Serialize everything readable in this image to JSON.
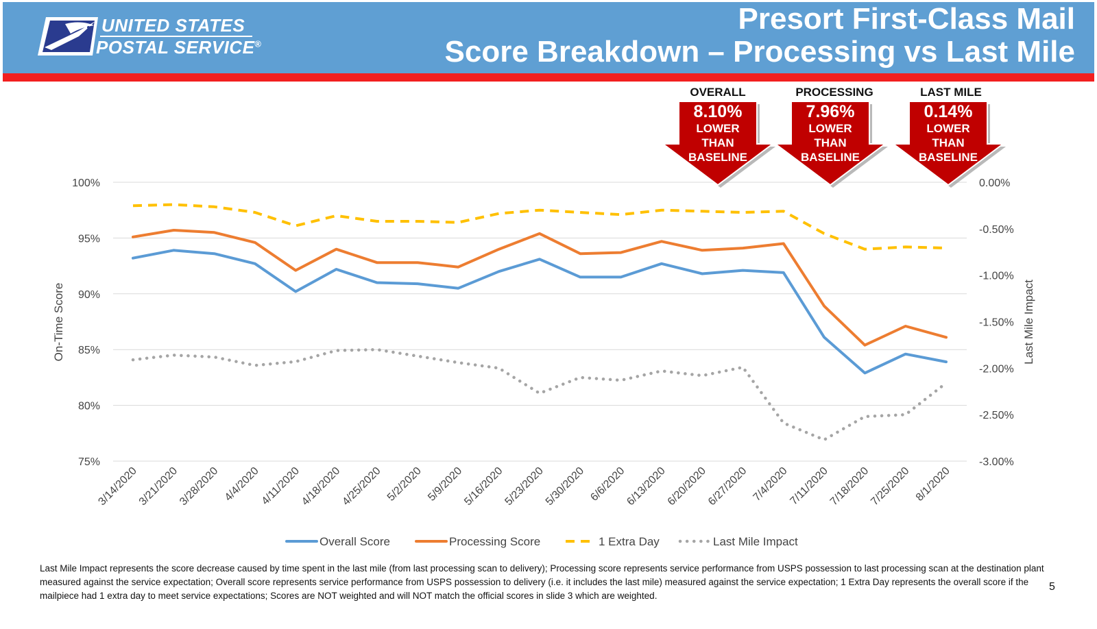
{
  "header": {
    "logo_line1": "UNITED STATES",
    "logo_line2": "POSTAL SERVICE",
    "registered_mark": "®",
    "title_line1": "Presort First-Class Mail",
    "title_line2": "Score Breakdown – Processing vs Last Mile",
    "background_color": "#5f9fd3",
    "band_color": "#f21f1f"
  },
  "callouts": [
    {
      "heading": "OVERALL",
      "value": "8.10%",
      "line1": "LOWER",
      "line2": "THAN",
      "line3": "BASELINE"
    },
    {
      "heading": "PROCESSING",
      "value": "7.96%",
      "line1": "LOWER",
      "line2": "THAN",
      "line3": "BASELINE"
    },
    {
      "heading": "LAST MILE",
      "value": "0.14%",
      "line1": "LOWER",
      "line2": "THAN",
      "line3": "BASELINE"
    }
  ],
  "chart_data": {
    "type": "line",
    "title": "",
    "xlabel": "",
    "ylabel": "On-Time Score",
    "y2label": "Last Mile Impact",
    "categories": [
      "3/14/2020",
      "3/21/2020",
      "3/28/2020",
      "4/4/2020",
      "4/11/2020",
      "4/18/2020",
      "4/25/2020",
      "5/2/2020",
      "5/9/2020",
      "5/16/2020",
      "5/23/2020",
      "5/30/2020",
      "6/6/2020",
      "6/13/2020",
      "6/20/2020",
      "6/27/2020",
      "7/4/2020",
      "7/11/2020",
      "7/18/2020",
      "7/25/2020",
      "8/1/2020"
    ],
    "ylim": [
      75,
      100
    ],
    "yticks": [
      "75%",
      "80%",
      "85%",
      "90%",
      "95%",
      "100%"
    ],
    "yticks_values": [
      75,
      80,
      85,
      90,
      95,
      100
    ],
    "y2lim": [
      -3.0,
      0.0
    ],
    "y2ticks": [
      "-3.00%",
      "-2.50%",
      "-2.00%",
      "-1.50%",
      "-1.00%",
      "-0.50%",
      "0.00%"
    ],
    "y2ticks_values": [
      -3.0,
      -2.5,
      -2.0,
      -1.5,
      -1.0,
      -0.5,
      0.0
    ],
    "grid": true,
    "legend_position": "bottom",
    "series": [
      {
        "name": "Overall Score",
        "axis": "left",
        "style": "solid",
        "color": "#5b9bd5",
        "values": [
          93.2,
          93.9,
          93.6,
          92.7,
          90.2,
          92.2,
          91.0,
          90.9,
          90.5,
          92.0,
          93.1,
          91.5,
          91.5,
          92.7,
          91.8,
          92.1,
          91.9,
          86.1,
          82.9,
          84.6,
          83.9
        ]
      },
      {
        "name": "Processing Score",
        "axis": "left",
        "style": "solid",
        "color": "#ed7d31",
        "values": [
          95.1,
          95.7,
          95.5,
          94.6,
          92.1,
          94.0,
          92.8,
          92.8,
          92.4,
          94.0,
          95.4,
          93.6,
          93.7,
          94.7,
          93.9,
          94.1,
          94.5,
          88.9,
          85.4,
          87.1,
          86.1
        ]
      },
      {
        "name": "1 Extra Day",
        "axis": "left",
        "style": "dashed",
        "color": "#ffc000",
        "values": [
          97.9,
          98.0,
          97.8,
          97.3,
          96.1,
          97.0,
          96.5,
          96.5,
          96.4,
          97.2,
          97.5,
          97.3,
          97.1,
          97.5,
          97.4,
          97.3,
          97.4,
          95.4,
          94.0,
          94.2,
          94.1
        ]
      },
      {
        "name": "Last Mile Impact",
        "axis": "right",
        "style": "dotted",
        "color": "#a5a5a5",
        "values": [
          -1.91,
          -1.86,
          -1.88,
          -1.97,
          -1.93,
          -1.81,
          -1.8,
          -1.87,
          -1.94,
          -2.0,
          -2.27,
          -2.1,
          -2.13,
          -2.03,
          -2.08,
          -1.99,
          -2.59,
          -2.77,
          -2.52,
          -2.5,
          -2.16
        ]
      }
    ]
  },
  "footnote": {
    "text": "Last Mile Impact represents the score decrease caused by time spent in the last mile (from last processing scan to delivery); Processing score represents service performance from USPS possession to last processing scan at the destination plant measured against the service expectation; Overall score represents service performance from USPS possession to delivery (i.e. it includes the last mile) measured against the service expectation; 1 Extra Day represents the overall score if the mailpiece had 1 extra day to meet service expectations; Scores are NOT weighted and will NOT match the official scores in slide 3 which are weighted."
  },
  "page_number": "5"
}
